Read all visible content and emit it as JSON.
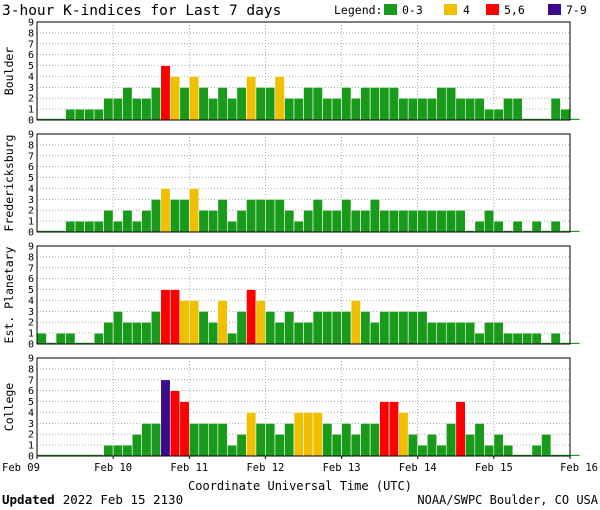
{
  "title": "3-hour K-indices for Last 7 days",
  "legend": {
    "label": "Legend:",
    "items": [
      {
        "text": "0-3",
        "color": "#1a9a1a"
      },
      {
        "text": "4",
        "color": "#f0c000"
      },
      {
        "text": "5,6",
        "color": "#ff0000"
      },
      {
        "text": "7-9",
        "color": "#3c0a8c"
      }
    ]
  },
  "xlabel": "Coordinate Universal Time (UTC)",
  "x_ticks": [
    "Feb 09",
    "Feb 10",
    "Feb 11",
    "Feb 12",
    "Feb 13",
    "Feb 14",
    "Feb 15",
    "Feb 16"
  ],
  "footer": {
    "updated_label": "Updated",
    "updated_value": "2022 Feb 15 2130",
    "source": "NOAA/SWPC Boulder, CO USA"
  },
  "chart_data": {
    "type": "bar",
    "x_range": [
      "2022-02-09 00:00",
      "2022-02-16 00:00"
    ],
    "interval_hours": 3,
    "ylim": [
      0,
      9
    ],
    "y_ticks": [
      0,
      1,
      2,
      3,
      4,
      5,
      6,
      7,
      8,
      9
    ],
    "grid": true,
    "color_rule": {
      "0-3": "#1a9a1a",
      "4": "#f0c000",
      "5-6": "#ff0000",
      "7-9": "#3c0a8c"
    },
    "series": [
      {
        "name": "Boulder",
        "values": [
          0,
          0,
          0,
          1,
          1,
          1,
          1,
          2,
          2,
          3,
          2,
          2,
          3,
          5,
          4,
          3,
          4,
          3,
          2,
          3,
          2,
          3,
          4,
          3,
          3,
          4,
          2,
          2,
          3,
          3,
          2,
          2,
          3,
          2,
          3,
          3,
          3,
          3,
          2,
          2,
          2,
          2,
          3,
          3,
          2,
          2,
          2,
          1,
          1,
          2,
          2,
          0,
          0,
          0,
          2,
          1,
          0
        ]
      },
      {
        "name": "Fredericksburg",
        "values": [
          0,
          0,
          0,
          1,
          1,
          1,
          1,
          2,
          1,
          2,
          1,
          2,
          3,
          4,
          3,
          3,
          4,
          2,
          2,
          3,
          1,
          2,
          3,
          3,
          3,
          3,
          2,
          1,
          2,
          3,
          2,
          2,
          3,
          2,
          2,
          3,
          2,
          2,
          2,
          2,
          2,
          2,
          2,
          2,
          2,
          0,
          1,
          2,
          1,
          0,
          1,
          0,
          1,
          0,
          1,
          0,
          0
        ]
      },
      {
        "name": "Est. Planetary",
        "values": [
          1,
          0,
          1,
          1,
          0,
          0,
          1,
          2,
          3,
          2,
          2,
          2,
          3,
          5,
          5,
          4,
          4,
          3,
          2,
          4,
          1,
          3,
          5,
          4,
          3,
          2,
          3,
          2,
          2,
          3,
          3,
          3,
          3,
          4,
          3,
          2,
          3,
          3,
          3,
          3,
          3,
          2,
          2,
          2,
          2,
          2,
          1,
          2,
          2,
          1,
          1,
          1,
          1,
          0,
          1,
          0,
          0
        ]
      },
      {
        "name": "College",
        "values": [
          0,
          0,
          0,
          0,
          0,
          0,
          0,
          1,
          1,
          1,
          2,
          3,
          3,
          7,
          6,
          5,
          3,
          3,
          3,
          3,
          1,
          2,
          4,
          3,
          3,
          2,
          3,
          4,
          4,
          4,
          3,
          2,
          3,
          2,
          3,
          3,
          5,
          5,
          4,
          2,
          1,
          2,
          1,
          3,
          5,
          2,
          3,
          1,
          2,
          1,
          0,
          0,
          1,
          2,
          0,
          0,
          0
        ]
      }
    ]
  }
}
